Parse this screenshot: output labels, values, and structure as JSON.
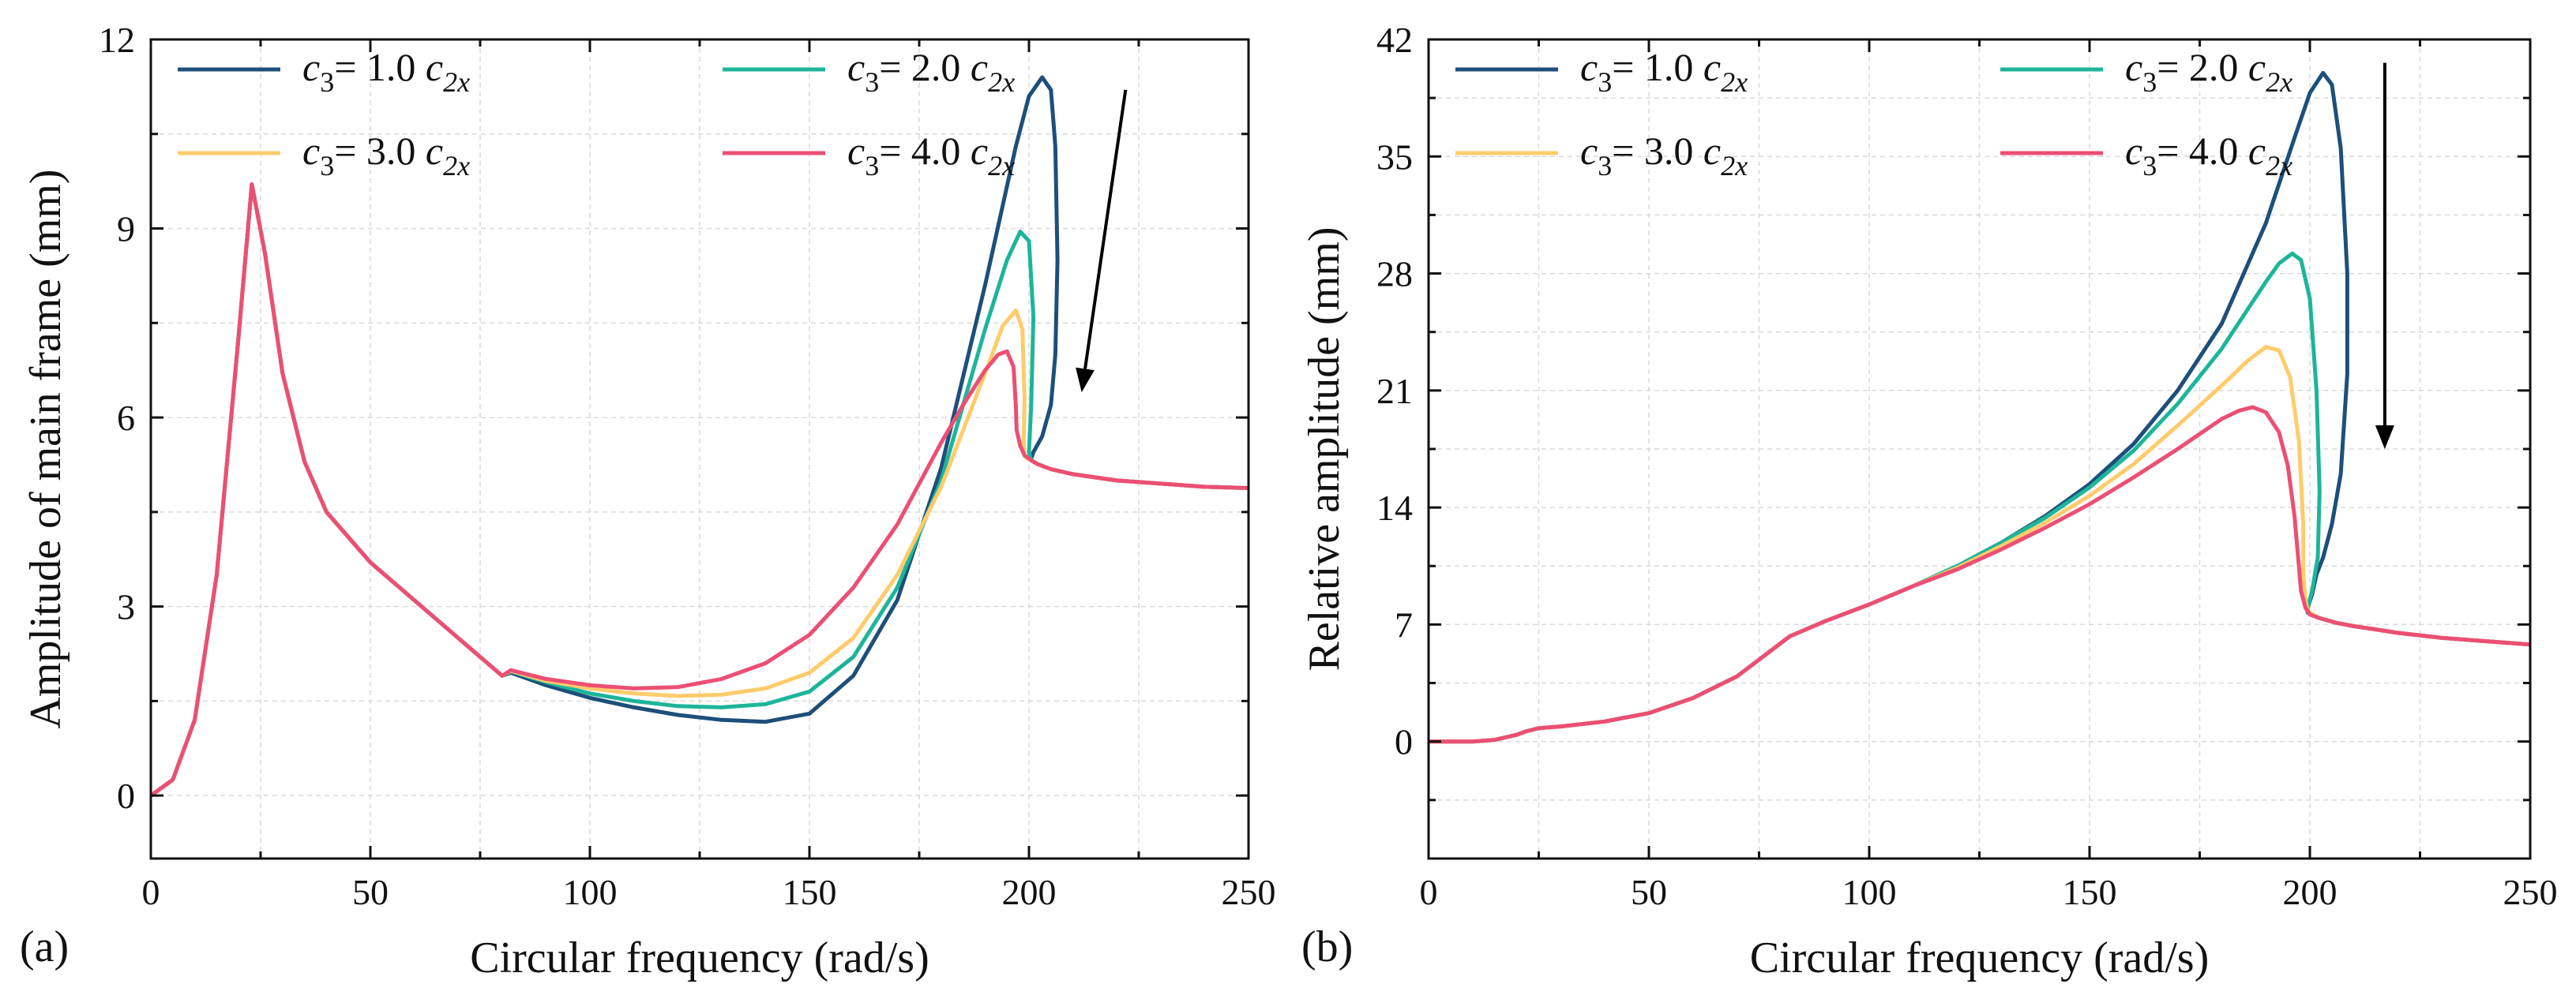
{
  "colors": {
    "c1": "#1d4f7a",
    "c2": "#1db59a",
    "c3": "#ffcb6b",
    "c4": "#ec4f74",
    "grid": "#d9d9d9",
    "axis": "#111111"
  },
  "chart_data": [
    {
      "type": "line",
      "panel_label": "(a)",
      "xlabel": "Circular frequency (rad/s)",
      "ylabel": "Amplitude of main frame (mm)",
      "xlim": [
        0,
        250
      ],
      "ylim": [
        -1,
        12
      ],
      "xticks": [
        "0",
        "50",
        "100",
        "150",
        "200",
        "250"
      ],
      "yticks": [
        "0",
        "3",
        "6",
        "9",
        "12"
      ],
      "grid": true,
      "legend_position": "top-left",
      "legend_columns": 2,
      "series": [
        {
          "name": "c3= 1.0 c2x",
          "color": "#1d4f7a",
          "x": [
            0,
            5,
            10,
            15,
            20,
            23,
            26,
            30,
            35,
            40,
            50,
            60,
            70,
            80,
            82,
            90,
            100,
            110,
            120,
            130,
            140,
            150,
            160,
            170,
            180,
            190,
            197,
            200,
            203,
            205,
            206,
            206.5,
            206,
            205,
            203,
            201,
            200.5,
            200.5,
            202,
            205,
            210,
            220,
            230,
            240,
            250
          ],
          "y": [
            0,
            0.25,
            1.2,
            3.5,
            7.3,
            9.7,
            8.6,
            6.7,
            5.3,
            4.5,
            3.7,
            3.1,
            2.5,
            1.9,
            1.95,
            1.75,
            1.55,
            1.4,
            1.28,
            1.2,
            1.17,
            1.3,
            1.9,
            3.1,
            5.2,
            8.1,
            10.3,
            11.1,
            11.4,
            11.2,
            10.3,
            8.5,
            7.0,
            6.2,
            5.7,
            5.45,
            5.35,
            5.32,
            5.26,
            5.18,
            5.1,
            5.0,
            4.95,
            4.9,
            4.88
          ]
        },
        {
          "name": "c3= 2.0 c2x",
          "color": "#1db59a",
          "x": [
            0,
            5,
            10,
            15,
            20,
            23,
            26,
            30,
            35,
            40,
            50,
            60,
            70,
            80,
            82,
            90,
            100,
            110,
            120,
            130,
            140,
            150,
            160,
            170,
            180,
            190,
            195,
            198,
            200,
            201,
            200.5,
            200,
            200.5,
            202,
            205,
            210,
            220,
            230,
            240,
            250
          ],
          "y": [
            0,
            0.25,
            1.2,
            3.5,
            7.3,
            9.7,
            8.6,
            6.7,
            5.3,
            4.5,
            3.7,
            3.1,
            2.5,
            1.9,
            1.97,
            1.8,
            1.62,
            1.5,
            1.42,
            1.4,
            1.45,
            1.65,
            2.2,
            3.3,
            5.0,
            7.4,
            8.5,
            8.95,
            8.8,
            7.6,
            6.2,
            5.45,
            5.32,
            5.26,
            5.18,
            5.1,
            5.0,
            4.95,
            4.9,
            4.88
          ]
        },
        {
          "name": "c3= 3.0 c2x",
          "color": "#ffcb6b",
          "x": [
            0,
            5,
            10,
            15,
            20,
            23,
            26,
            30,
            35,
            40,
            50,
            60,
            70,
            80,
            82,
            90,
            100,
            110,
            120,
            130,
            140,
            150,
            160,
            170,
            180,
            190,
            194,
            197,
            198.5,
            199,
            198.8,
            199,
            200.5,
            202,
            205,
            210,
            220,
            230,
            240,
            250
          ],
          "y": [
            0,
            0.25,
            1.2,
            3.5,
            7.3,
            9.7,
            8.6,
            6.7,
            5.3,
            4.5,
            3.7,
            3.1,
            2.5,
            1.9,
            1.98,
            1.82,
            1.7,
            1.62,
            1.58,
            1.6,
            1.7,
            1.95,
            2.5,
            3.5,
            4.9,
            6.7,
            7.45,
            7.7,
            7.4,
            6.3,
            5.6,
            5.38,
            5.32,
            5.26,
            5.18,
            5.1,
            5.0,
            4.95,
            4.9,
            4.88
          ]
        },
        {
          "name": "c3= 4.0 c2x",
          "color": "#ec4f74",
          "x": [
            0,
            5,
            10,
            15,
            20,
            23,
            26,
            30,
            35,
            40,
            50,
            60,
            70,
            80,
            82,
            90,
            100,
            110,
            120,
            130,
            140,
            150,
            160,
            170,
            180,
            185,
            190,
            193,
            195,
            196.5,
            197,
            197.2,
            198,
            199,
            200.5,
            202,
            205,
            210,
            220,
            230,
            240,
            250
          ],
          "y": [
            0,
            0.25,
            1.2,
            3.5,
            7.3,
            9.7,
            8.6,
            6.7,
            5.3,
            4.5,
            3.7,
            3.1,
            2.5,
            1.9,
            1.99,
            1.85,
            1.75,
            1.7,
            1.72,
            1.85,
            2.1,
            2.55,
            3.3,
            4.3,
            5.6,
            6.2,
            6.75,
            7.0,
            7.05,
            6.8,
            6.2,
            5.8,
            5.55,
            5.4,
            5.32,
            5.26,
            5.18,
            5.1,
            5.0,
            4.95,
            4.9,
            4.88
          ]
        }
      ],
      "annotations": [
        {
          "type": "arrow",
          "from": [
            222,
            11.2
          ],
          "to": [
            212,
            6.4
          ]
        }
      ]
    },
    {
      "type": "line",
      "panel_label": "(b)",
      "xlabel": "Circular frequency (rad/s)",
      "ylabel": "Relative amplitude (mm)",
      "xlim": [
        0,
        250
      ],
      "ylim": [
        -7,
        42
      ],
      "xticks": [
        "0",
        "50",
        "100",
        "150",
        "200",
        "250"
      ],
      "yticks": [
        "0",
        "7",
        "14",
        "21",
        "28",
        "35",
        "42"
      ],
      "grid": true,
      "legend_position": "top-left",
      "legend_columns": 2,
      "series": [
        {
          "name": "c3= 1.0 c2x",
          "color": "#1d4f7a",
          "x": [
            0,
            10,
            15,
            20,
            22,
            25,
            30,
            40,
            50,
            60,
            70,
            80,
            82,
            90,
            100,
            110,
            120,
            130,
            140,
            150,
            160,
            170,
            180,
            190,
            197,
            200,
            203,
            205,
            207,
            208.5,
            208.5,
            207,
            205,
            203,
            201.5,
            200.5,
            199.5,
            199.5,
            202,
            206,
            210,
            220,
            230,
            240,
            250
          ],
          "y": [
            0,
            0,
            0.1,
            0.4,
            0.6,
            0.8,
            0.9,
            1.2,
            1.7,
            2.6,
            3.9,
            5.9,
            6.3,
            7.2,
            8.2,
            9.3,
            10.5,
            11.9,
            13.5,
            15.4,
            17.8,
            21.0,
            25.0,
            31.0,
            36.5,
            38.8,
            40.0,
            39.3,
            35.5,
            28.0,
            22.0,
            16.0,
            13.0,
            11.0,
            10.0,
            8.8,
            8.0,
            7.7,
            7.4,
            7.1,
            6.9,
            6.5,
            6.2,
            6.0,
            5.8
          ]
        },
        {
          "name": "c3= 2.0 c2x",
          "color": "#1db59a",
          "x": [
            0,
            10,
            15,
            20,
            22,
            25,
            30,
            40,
            50,
            60,
            70,
            80,
            82,
            90,
            100,
            110,
            120,
            130,
            140,
            150,
            160,
            170,
            180,
            190,
            193,
            196,
            198,
            200,
            201.5,
            202.2,
            201.8,
            200.5,
            199.5,
            199.5,
            202,
            206,
            210,
            220,
            230,
            240,
            250
          ],
          "y": [
            0,
            0,
            0.1,
            0.4,
            0.6,
            0.8,
            0.9,
            1.2,
            1.7,
            2.6,
            3.9,
            5.9,
            6.3,
            7.2,
            8.2,
            9.3,
            10.5,
            11.9,
            13.4,
            15.2,
            17.4,
            20.2,
            23.5,
            27.5,
            28.6,
            29.2,
            28.8,
            26.5,
            21.0,
            15.0,
            11.0,
            9.0,
            8.0,
            7.7,
            7.4,
            7.1,
            6.9,
            6.5,
            6.2,
            6.0,
            5.8
          ]
        },
        {
          "name": "c3= 3.0 c2x",
          "color": "#ffcb6b",
          "x": [
            0,
            10,
            15,
            20,
            22,
            25,
            30,
            40,
            50,
            60,
            70,
            80,
            82,
            90,
            100,
            110,
            120,
            130,
            140,
            150,
            160,
            170,
            180,
            186,
            190,
            193,
            195.5,
            197.5,
            198.5,
            198.5,
            199,
            199.5,
            202,
            206,
            210,
            220,
            230,
            240,
            250
          ],
          "y": [
            0,
            0,
            0.1,
            0.4,
            0.6,
            0.8,
            0.9,
            1.2,
            1.7,
            2.6,
            3.9,
            5.9,
            6.3,
            7.2,
            8.2,
            9.3,
            10.4,
            11.7,
            13.1,
            14.7,
            16.6,
            18.9,
            21.3,
            22.8,
            23.6,
            23.4,
            21.8,
            18.0,
            13.0,
            10.0,
            8.5,
            7.8,
            7.4,
            7.1,
            6.9,
            6.5,
            6.2,
            6.0,
            5.8
          ]
        },
        {
          "name": "c3= 4.0 c2x",
          "color": "#ec4f74",
          "x": [
            0,
            10,
            15,
            20,
            22,
            25,
            30,
            40,
            50,
            60,
            70,
            80,
            82,
            90,
            100,
            110,
            120,
            130,
            140,
            150,
            160,
            170,
            175,
            180,
            184,
            187,
            190,
            193,
            195,
            196.5,
            197.5,
            198,
            199,
            200,
            202,
            206,
            210,
            220,
            230,
            240,
            250
          ],
          "y": [
            0,
            0,
            0.1,
            0.4,
            0.6,
            0.8,
            0.9,
            1.2,
            1.7,
            2.6,
            3.9,
            5.9,
            6.3,
            7.2,
            8.2,
            9.3,
            10.3,
            11.5,
            12.8,
            14.2,
            15.8,
            17.5,
            18.4,
            19.3,
            19.8,
            20.0,
            19.7,
            18.5,
            16.5,
            13.5,
            10.5,
            9.0,
            8.0,
            7.6,
            7.4,
            7.1,
            6.9,
            6.5,
            6.2,
            6.0,
            5.8
          ]
        }
      ],
      "annotations": [
        {
          "type": "arrow",
          "from": [
            217,
            40.6
          ],
          "to": [
            217,
            17.5
          ]
        }
      ]
    }
  ]
}
